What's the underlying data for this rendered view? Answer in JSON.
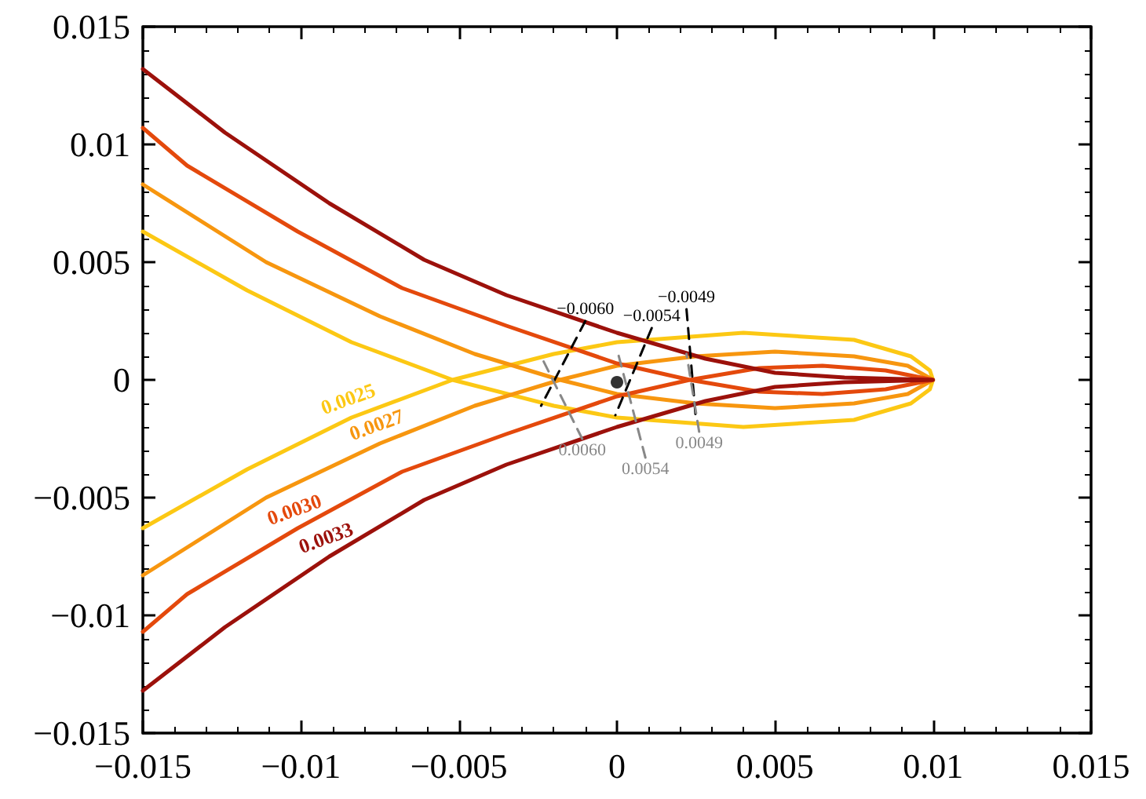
{
  "chart_data": {
    "type": "line",
    "marker": "none",
    "xlim": [
      -0.015,
      0.015
    ],
    "ylim": [
      -0.015,
      0.015
    ],
    "xticks": [
      {
        "value": -0.015,
        "label": "−0.015"
      },
      {
        "value": -0.01,
        "label": "−0.01"
      },
      {
        "value": -0.005,
        "label": "−0.005"
      },
      0,
      0.005,
      0.01,
      0.015
    ],
    "yticks": [
      {
        "value": -0.015,
        "label": "−0.015"
      },
      {
        "value": -0.01,
        "label": "−0.01"
      },
      {
        "value": -0.005,
        "label": "−0.005"
      },
      0,
      0.005,
      0.01,
      0.015
    ],
    "series": [
      {
        "name": "0.0025",
        "color": "#fcc814",
        "x": [
          -0.015,
          -0.0117,
          -0.0084,
          -0.0052,
          -0.002,
          0,
          0.004,
          0.0075,
          0.0093,
          0.0099,
          0.01,
          0.0099,
          0.0093,
          0.0075,
          0.004,
          0,
          -0.002,
          -0.0052,
          -0.0084,
          -0.0117,
          -0.015
        ],
        "values": [
          0.0063,
          0.0038,
          0.0016,
          0,
          -0.0011,
          -0.0016,
          -0.002,
          -0.0017,
          -0.001,
          -0.0004,
          0,
          0.0004,
          0.001,
          0.0017,
          0.002,
          0.0016,
          0.0011,
          0,
          -0.0016,
          -0.0038,
          -0.0063
        ]
      },
      {
        "name": "0.0027",
        "color": "#f7960f",
        "x": [
          -0.015,
          -0.0111,
          -0.0075,
          -0.0045,
          -0.0018,
          0,
          0.0025,
          0.005,
          0.0075,
          0.0092,
          0.01,
          0.0092,
          0.0075,
          0.005,
          0.0025,
          0,
          -0.0018,
          -0.0045,
          -0.0075,
          -0.0111,
          -0.015
        ],
        "values": [
          0.0083,
          0.005,
          0.0027,
          0.0011,
          0,
          -0.0006,
          -0.001,
          -0.0012,
          -0.001,
          -0.0006,
          0,
          0.0006,
          0.001,
          0.0012,
          0.001,
          0.0006,
          0,
          -0.0011,
          -0.0027,
          -0.005,
          -0.0083
        ]
      },
      {
        "name": "0.0030",
        "color": "#e4490c",
        "x": [
          -0.015,
          -0.0136,
          -0.0101,
          -0.0068,
          -0.0035,
          0,
          0.0023,
          0.0045,
          0.0065,
          0.0085,
          0.01,
          0.0085,
          0.0065,
          0.0045,
          0.0023,
          0,
          -0.0035,
          -0.0068,
          -0.0101,
          -0.0136,
          -0.015
        ],
        "values": [
          0.0107,
          0.0091,
          0.0063,
          0.0039,
          0.0023,
          0.0007,
          0,
          -0.0005,
          -0.0006,
          -0.0004,
          0,
          0.0004,
          0.0006,
          0.0005,
          0,
          -0.0007,
          -0.0023,
          -0.0039,
          -0.0063,
          -0.0091,
          -0.0107
        ]
      },
      {
        "name": "0.0033",
        "color": "#9c110b",
        "x": [
          -0.015,
          -0.0124,
          -0.0091,
          -0.0061,
          -0.0035,
          0,
          0.0028,
          0.005,
          0.0072,
          0.01,
          0.0072,
          0.005,
          0.0028,
          0,
          -0.0035,
          -0.0061,
          -0.0091,
          -0.0124,
          -0.015
        ],
        "values": [
          0.0132,
          0.0105,
          0.0075,
          0.0051,
          0.0036,
          0.002,
          0.0009,
          0.0003,
          0.0001,
          0,
          -0.0001,
          -0.0003,
          -0.0009,
          -0.002,
          -0.0036,
          -0.0051,
          -0.0075,
          -0.0105,
          -0.0132
        ]
      },
      {
        "name": "−0.0060",
        "color": "#000000",
        "line_style": "dashed",
        "x": [
          -0.001,
          -0.0024
        ],
        "values": [
          0.0025,
          -0.0011
        ]
      },
      {
        "name": "−0.0054",
        "color": "#000000",
        "line_style": "dashed",
        "x": [
          0.0011,
          -5e-05
        ],
        "values": [
          0.0022,
          -0.0015
        ]
      },
      {
        "name": "−0.0049",
        "color": "#000000",
        "line_style": "dashed",
        "x": [
          0.0022,
          0.0025
        ],
        "values": [
          0.003,
          -0.0017
        ]
      },
      {
        "name": "0.0060",
        "color": "#888888",
        "line_style": "dashed",
        "x": [
          -0.0011,
          -0.0024
        ],
        "values": [
          -0.0025,
          0.001
        ]
      },
      {
        "name": "0.0054",
        "color": "#888888",
        "line_style": "dashed",
        "x": [
          0.0009,
          0
        ],
        "values": [
          -0.0033,
          0.0013
        ]
      },
      {
        "name": "0.0049",
        "color": "#888888",
        "line_style": "dashed",
        "x": [
          0.0026,
          0.0022
        ],
        "values": [
          -0.0022,
          0.0011
        ]
      },
      {
        "type": "scatter",
        "marker": "circle",
        "color": "#000000",
        "x": [
          0
        ],
        "values": [
          -0.0001
        ]
      }
    ]
  }
}
